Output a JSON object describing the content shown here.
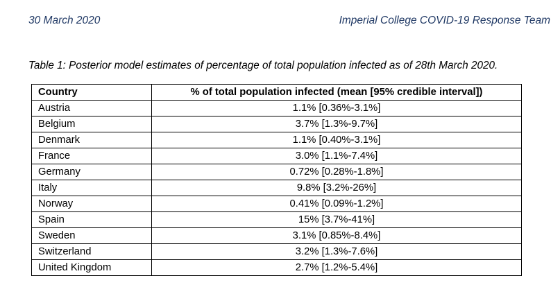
{
  "header": {
    "date": "30 March 2020",
    "team": "Imperial College COVID-19 Response Team"
  },
  "caption": "Table 1: Posterior model estimates of percentage of total population infected as of 28th March 2020.",
  "table": {
    "columns": [
      "Country",
      "% of total population infected (mean [95% credible interval])"
    ],
    "rows": [
      {
        "country": "Austria",
        "value": "1.1% [0.36%-3.1%]"
      },
      {
        "country": "Belgium",
        "value": "3.7% [1.3%-9.7%]"
      },
      {
        "country": "Denmark",
        "value": "1.1% [0.40%-3.1%]"
      },
      {
        "country": "France",
        "value": "3.0% [1.1%-7.4%]"
      },
      {
        "country": "Germany",
        "value": "0.72% [0.28%-1.8%]"
      },
      {
        "country": "Italy",
        "value": "9.8% [3.2%-26%]"
      },
      {
        "country": "Norway",
        "value": "0.41% [0.09%-1.2%]"
      },
      {
        "country": "Spain",
        "value": "15% [3.7%-41%]"
      },
      {
        "country": "Sweden",
        "value": "3.1% [0.85%-8.4%]"
      },
      {
        "country": "Switzerland",
        "value": "3.2% [1.3%-7.6%]"
      },
      {
        "country": "United Kingdom",
        "value": "2.7% [1.2%-5.4%]"
      }
    ]
  }
}
